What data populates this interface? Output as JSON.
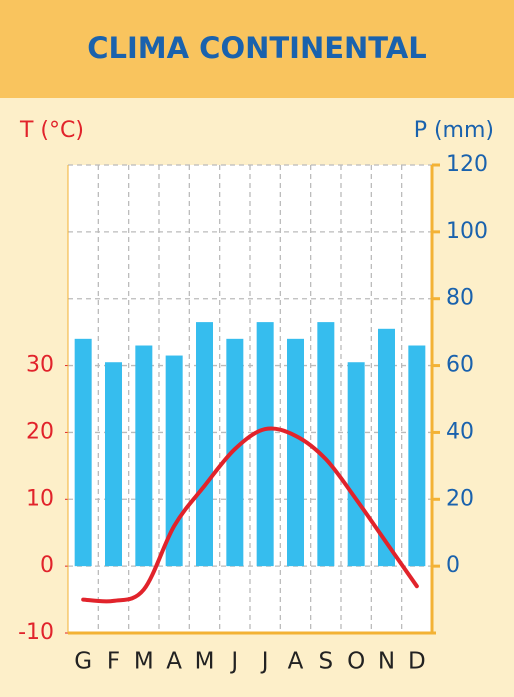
{
  "chart_data": {
    "type": "climograph",
    "title": "CLIMA CONTINENTAL",
    "y_label": "T (°C)",
    "y2_label": "P (mm)",
    "categories": [
      "G",
      "F",
      "M",
      "A",
      "M",
      "J",
      "J",
      "A",
      "S",
      "O",
      "N",
      "D"
    ],
    "series": [
      {
        "type": "bar",
        "axis": "y2",
        "color": "#36bdee",
        "values": [
          68,
          61,
          66,
          63,
          73,
          68,
          73,
          68,
          73,
          61,
          71,
          66
        ]
      },
      {
        "type": "line",
        "color": "#e1232b",
        "values": [
          -5,
          -5.2,
          -3.5,
          6,
          12,
          17.5,
          20.5,
          19.5,
          16,
          10,
          3.5,
          -3
        ]
      }
    ],
    "ylim": [
      -10,
      60
    ],
    "yticks": [
      -10,
      0,
      10,
      20,
      30
    ],
    "y2lim": [
      -20,
      120
    ],
    "y2ticks": [
      0,
      20,
      40,
      60,
      80,
      100,
      120
    ],
    "grid": true
  }
}
